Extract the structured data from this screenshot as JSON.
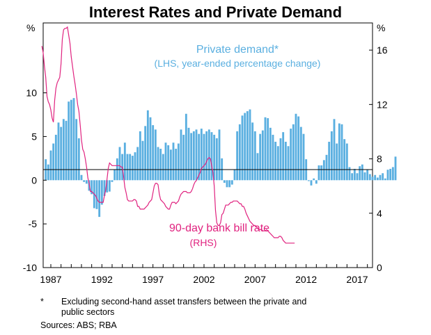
{
  "chart_data": {
    "type": "bar",
    "title": "Interest Rates and Private Demand",
    "unit_left": "%",
    "unit_right": "%",
    "left_axis": {
      "ylim": [
        -10,
        18
      ],
      "ticks": [
        10,
        5,
        0,
        -5,
        -10
      ],
      "tick_labels": [
        "10",
        "5",
        "0",
        "-5",
        "-10"
      ]
    },
    "right_axis": {
      "ylim": [
        0,
        18
      ],
      "ticks": [
        16,
        12,
        8,
        4,
        0
      ],
      "tick_labels": [
        "16",
        "12",
        "8",
        "4",
        "0"
      ]
    },
    "x_axis": {
      "range": [
        1986.25,
        2018.5
      ],
      "tick_labels": [
        "1987",
        "1992",
        "1997",
        "2002",
        "2007",
        "2012",
        "2017"
      ],
      "tick_years": [
        1987,
        1992,
        1997,
        2002,
        2007,
        2012,
        2017
      ]
    },
    "series": [
      {
        "name": "Private demand*",
        "note": "(LHS, year-ended percentage change)",
        "kind": "bar",
        "axis": "left",
        "color": "#5aafe0",
        "x_start": 1986.5,
        "x_step": 0.25,
        "values": [
          2.4,
          1.8,
          3.4,
          4.2,
          5.2,
          6.6,
          6.1,
          7.0,
          6.8,
          9.0,
          9.2,
          9.4,
          7.0,
          4.8,
          0.6,
          -0.2,
          -0.4,
          -1.2,
          -1.6,
          -3.2,
          -3.3,
          -4.2,
          -2.8,
          -1.8,
          -1.4,
          -1.3,
          -0.2,
          1.2,
          2.5,
          3.8,
          3.0,
          4.3,
          3.0,
          3.0,
          2.8,
          3.2,
          3.8,
          5.6,
          4.5,
          6.2,
          8.0,
          7.2,
          6.3,
          5.8,
          3.8,
          3.6,
          3.0,
          4.3,
          4.0,
          3.5,
          4.3,
          3.6,
          4.2,
          5.8,
          5.2,
          7.6,
          6.0,
          5.4,
          5.6,
          5.8,
          5.3,
          5.9,
          5.3,
          5.6,
          5.8,
          5.5,
          5.2,
          4.8,
          5.8,
          2.5,
          -0.3,
          -0.8,
          -0.8,
          -0.5,
          1.2,
          5.6,
          6.4,
          7.4,
          7.7,
          7.9,
          8.1,
          6.6,
          5.6,
          3.1,
          5.3,
          5.7,
          7.2,
          7.1,
          6.0,
          5.2,
          4.4,
          3.9,
          4.8,
          5.5,
          4.4,
          3.9,
          5.9,
          6.4,
          7.6,
          7.3,
          6.1,
          5.3,
          2.4,
          -0.1,
          -0.6,
          0.2,
          -0.4,
          1.7,
          1.7,
          2.3,
          2.9,
          4.4,
          5.6,
          7.0,
          4.2,
          6.5,
          6.4,
          4.7,
          4.2,
          1.5,
          0.8,
          1.3,
          0.8,
          1.6,
          1.8,
          0.9,
          1.2,
          0.7,
          0.4,
          0.6,
          0.3,
          0.6,
          0.8,
          0.2,
          1.2,
          1.3,
          1.5,
          2.7
        ]
      },
      {
        "name": "90-day bank bill rate",
        "note": "(RHS)",
        "kind": "line",
        "axis": "right",
        "color": "#e0227f",
        "x_start": 1986.125,
        "x_step": 0.125,
        "values": [
          16.3,
          15.8,
          14.8,
          14.0,
          12.6,
          12.2,
          12.0,
          11.6,
          11.0,
          10.7,
          12.3,
          13.2,
          13.6,
          13.8,
          14.0,
          15.0,
          16.8,
          17.5,
          17.6,
          17.6,
          17.7,
          17.1,
          16.5,
          15.5,
          14.8,
          14.1,
          13.5,
          12.8,
          12.0,
          11.5,
          10.5,
          9.4,
          8.7,
          8.5,
          8.0,
          7.4,
          6.6,
          6.2,
          5.6,
          5.6,
          5.5,
          5.4,
          5.3,
          5.1,
          4.9,
          4.8,
          4.8,
          4.8,
          4.8,
          5.3,
          5.7,
          6.5,
          7.3,
          7.7,
          7.6,
          7.5,
          7.5,
          7.5,
          7.5,
          7.5,
          7.5,
          7.5,
          7.4,
          7.4,
          6.7,
          5.9,
          5.5,
          5.0,
          4.9,
          4.9,
          4.9,
          4.9,
          5.0,
          5.0,
          4.9,
          4.5,
          4.5,
          4.3,
          4.3,
          4.3,
          4.3,
          4.4,
          4.5,
          4.6,
          4.8,
          4.9,
          5.0,
          5.5,
          6.0,
          6.2,
          6.2,
          6.1,
          5.4,
          5.0,
          4.9,
          4.8,
          4.7,
          4.5,
          4.4,
          4.3,
          4.3,
          4.6,
          4.8,
          4.8,
          4.8,
          4.7,
          4.8,
          4.9,
          5.2,
          5.4,
          5.5,
          5.6,
          5.6,
          5.6,
          5.5,
          5.5,
          5.5,
          5.6,
          5.8,
          6.1,
          6.3,
          6.4,
          6.6,
          6.8,
          7.0,
          7.3,
          7.4,
          7.5,
          7.6,
          7.8,
          8.0,
          8.1,
          8.0,
          7.5,
          7.0,
          6.0,
          4.2,
          3.3,
          3.1,
          3.1,
          3.3,
          3.9,
          4.0,
          4.3,
          4.6,
          4.6,
          4.6,
          4.7,
          4.8,
          4.8,
          4.9,
          4.9,
          4.9,
          4.9,
          4.8,
          4.7,
          4.7,
          4.5,
          4.5,
          4.3,
          4.0,
          3.8,
          3.6,
          3.4,
          3.3,
          3.2,
          3.1,
          3.1,
          3.0,
          2.9,
          2.8,
          2.8,
          2.8,
          2.7,
          2.7,
          2.7,
          2.8,
          2.7,
          2.6,
          2.5,
          2.4,
          2.3,
          2.2,
          2.2,
          2.2,
          2.2,
          2.3,
          2.3,
          2.2,
          2.0,
          1.9,
          1.8,
          1.8,
          1.8,
          1.8,
          1.8,
          1.8,
          1.8,
          1.8
        ]
      }
    ]
  },
  "footnote": {
    "marker": "*",
    "line1": "Excluding second-hand asset transfers between the private and",
    "line2": "public sectors",
    "sources": "Sources:  ABS; RBA"
  }
}
